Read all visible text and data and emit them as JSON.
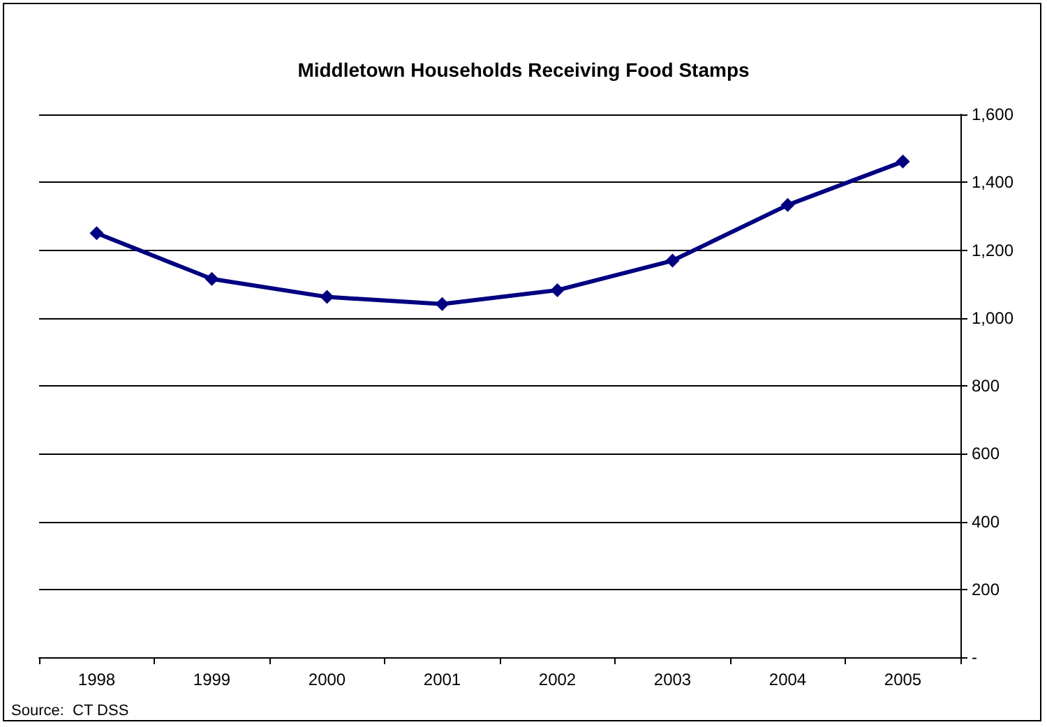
{
  "chart_data": {
    "type": "line",
    "title": "Middletown Households Receiving Food Stamps",
    "categories": [
      "1998",
      "1999",
      "2000",
      "2001",
      "2002",
      "2003",
      "2004",
      "2005"
    ],
    "series": [
      {
        "color": "#000080",
        "values": [
          1250,
          1115,
          1062,
          1041,
          1082,
          1169,
          1333,
          1461
        ]
      }
    ],
    "ylim": [
      0,
      1600
    ],
    "yticks": [
      {
        "value": 0,
        "label": "-"
      },
      {
        "value": 200,
        "label": "200"
      },
      {
        "value": 400,
        "label": "400"
      },
      {
        "value": 600,
        "label": "600"
      },
      {
        "value": 800,
        "label": "800"
      },
      {
        "value": 1000,
        "label": "1,000"
      },
      {
        "value": 1200,
        "label": "1,200"
      },
      {
        "value": 1400,
        "label": "1,400"
      },
      {
        "value": 1600,
        "label": "1,600"
      }
    ],
    "grid": "y",
    "marker": "diamond",
    "line_style": "solid",
    "annotations": [
      "Source:  CT DSS"
    ]
  }
}
